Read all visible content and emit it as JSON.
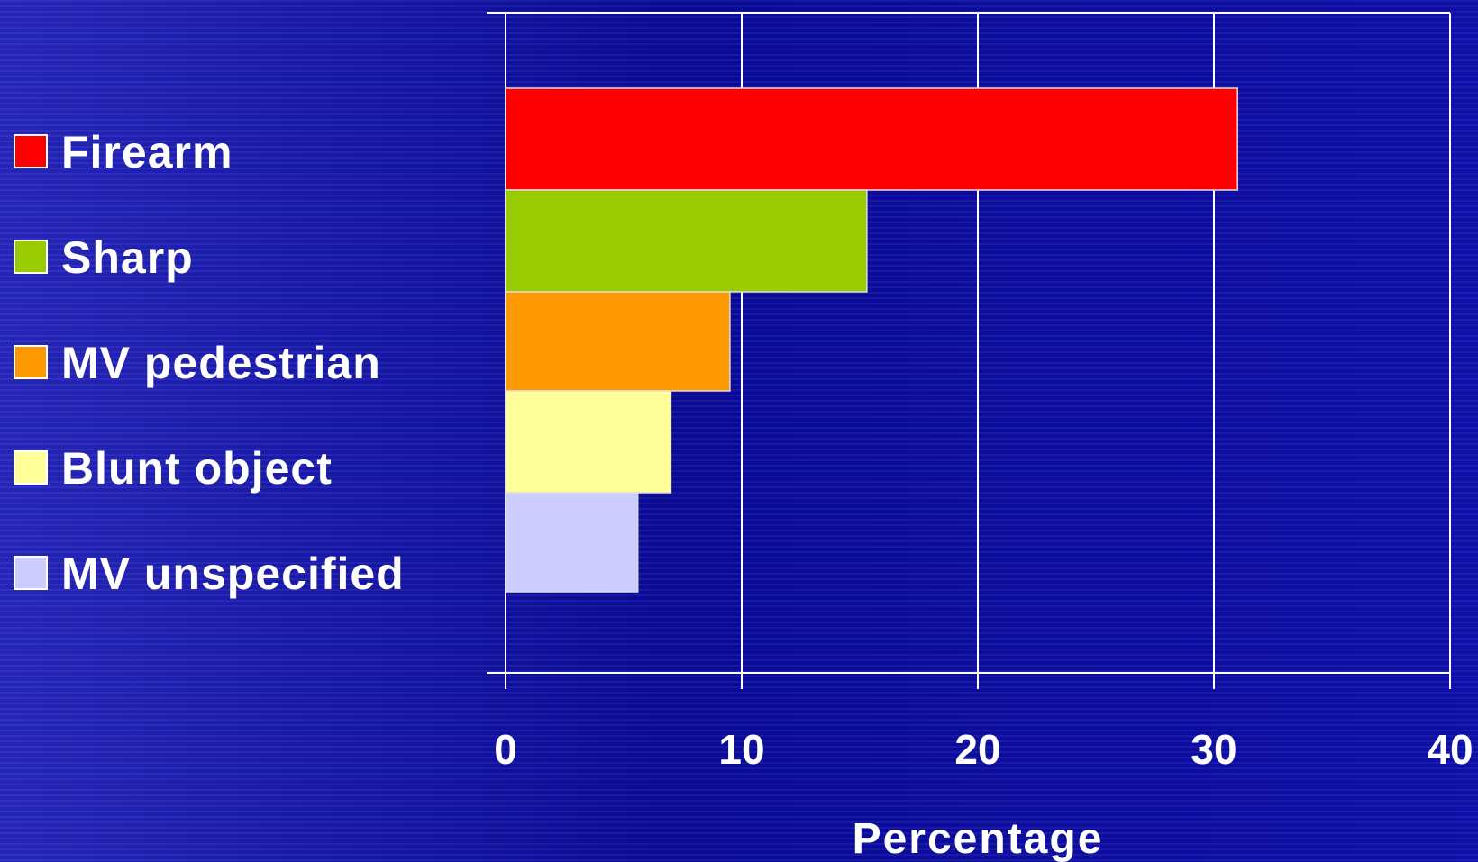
{
  "chart_data": {
    "type": "bar",
    "orientation": "horizontal",
    "categories": [
      "Firearm",
      "Sharp",
      "MV pedestrian",
      "Blunt object",
      "MV unspecified"
    ],
    "values": [
      31,
      15.3,
      9.5,
      7,
      5.6
    ],
    "colors": [
      "#ff0000",
      "#99cc00",
      "#ff9900",
      "#ffff99",
      "#ccccff"
    ],
    "xlabel": "Percentage",
    "xlim": [
      0,
      40
    ],
    "xticks": [
      0,
      10,
      20,
      30,
      40
    ],
    "grid": true,
    "legend_position": "left"
  }
}
